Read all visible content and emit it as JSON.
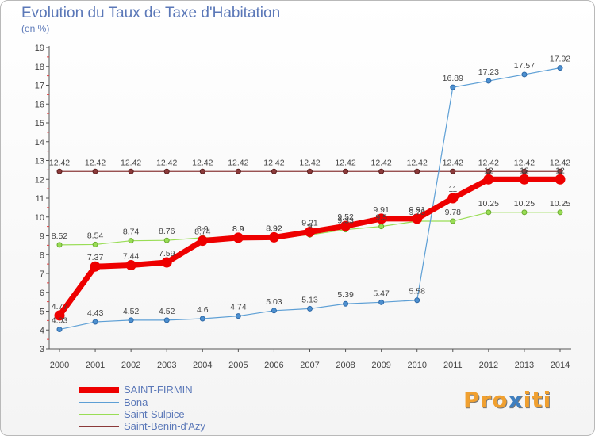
{
  "title": "Evolution du Taux de Taxe d'Habitation",
  "subtitle": "(en %)",
  "logo": {
    "parts": [
      "Pro",
      "x",
      "iti"
    ],
    "colors": [
      "#f0a030",
      "#3f7fc0",
      "#f0a030"
    ]
  },
  "chart_data": {
    "type": "line",
    "x": [
      "2000",
      "2001",
      "2002",
      "2003",
      "2004",
      "2005",
      "2006",
      "2007",
      "2008",
      "2009",
      "2010",
      "2011",
      "2012",
      "2013",
      "2014"
    ],
    "ylim": [
      3,
      19
    ],
    "yticks": [
      3,
      4,
      5,
      6,
      7,
      8,
      9,
      10,
      11,
      12,
      13,
      14,
      15,
      16,
      17,
      18,
      19
    ],
    "grid": false,
    "legend_placement": "bottom-left",
    "series": [
      {
        "name": "SAINT-FIRMIN",
        "color": "#ee0000",
        "values": [
          4.77,
          7.37,
          7.44,
          7.59,
          8.74,
          8.9,
          8.92,
          9.21,
          9.52,
          9.91,
          9.91,
          11,
          12,
          12,
          12
        ],
        "labels": [
          "4.77",
          "7.37",
          "7.44",
          "7.59",
          "8.74",
          "8.9",
          "8.92",
          "9.21",
          "9.52",
          "9.91",
          "9.91",
          "11",
          "12",
          "12",
          "12"
        ]
      },
      {
        "name": "Bona",
        "color": "#5d9fd5",
        "values": [
          4.03,
          4.43,
          4.52,
          4.52,
          4.6,
          4.74,
          5.03,
          5.13,
          5.39,
          5.47,
          5.58,
          16.89,
          17.23,
          17.57,
          17.92
        ],
        "labels": [
          "4.03",
          "4.43",
          "4.52",
          "4.52",
          "4.6",
          "4.74",
          "5.03",
          "5.13",
          "5.39",
          "5.47",
          "5.58",
          "16.89",
          "17.23",
          "17.57",
          "17.92"
        ]
      },
      {
        "name": "Saint-Sulpice",
        "color": "#99dd55",
        "values": [
          8.52,
          8.54,
          8.74,
          8.76,
          8.9,
          8.9,
          8.92,
          9.05,
          9.33,
          9.5,
          9.78,
          9.78,
          10.25,
          10.25,
          10.25
        ],
        "labels": [
          "8.52",
          "8.54",
          "8.74",
          "8.76",
          "8.9",
          "8.9",
          "8.92",
          "9",
          "9.33",
          "9.5",
          "9.78",
          "9.78",
          "10.25",
          "10.25",
          "10.25"
        ]
      },
      {
        "name": "Saint-Benin-d'Azy",
        "color": "#8b3a3a",
        "values": [
          12.42,
          12.42,
          12.42,
          12.42,
          12.42,
          12.42,
          12.42,
          12.42,
          12.42,
          12.42,
          12.42,
          12.42,
          12.42,
          12.42,
          12.42
        ],
        "labels": [
          "12.42",
          "12.42",
          "12.42",
          "12.42",
          "12.42",
          "12.42",
          "12.42",
          "12.42",
          "12.42",
          "12.42",
          "12.42",
          "12.42",
          "12.42",
          "12.42",
          "12.42"
        ]
      }
    ]
  }
}
